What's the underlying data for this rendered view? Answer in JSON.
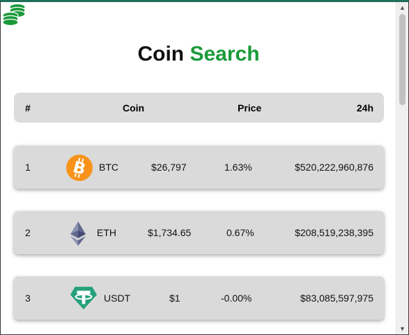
{
  "app": {
    "title_word1": "Coin",
    "title_word2": "Search",
    "accent_color": "#1a9a3a",
    "logo_icon": "coins-stack-icon"
  },
  "table": {
    "headers": {
      "rank": "#",
      "coin": "Coin",
      "price": "Price",
      "change": "24h"
    },
    "rows": [
      {
        "rank": "1",
        "symbol": "BTC",
        "price": "$26,797",
        "change": "1.63%",
        "market_cap": "$520,222,960,876",
        "icon": "bitcoin-icon"
      },
      {
        "rank": "2",
        "symbol": "ETH",
        "price": "$1,734.65",
        "change": "0.67%",
        "market_cap": "$208,519,238,395",
        "icon": "ethereum-icon"
      },
      {
        "rank": "3",
        "symbol": "USDT",
        "price": "$1",
        "change": "-0.00%",
        "market_cap": "$83,085,597,975",
        "icon": "tether-icon"
      }
    ]
  },
  "scrollbar": {
    "up_glyph": "▲",
    "down_glyph": "▼"
  }
}
